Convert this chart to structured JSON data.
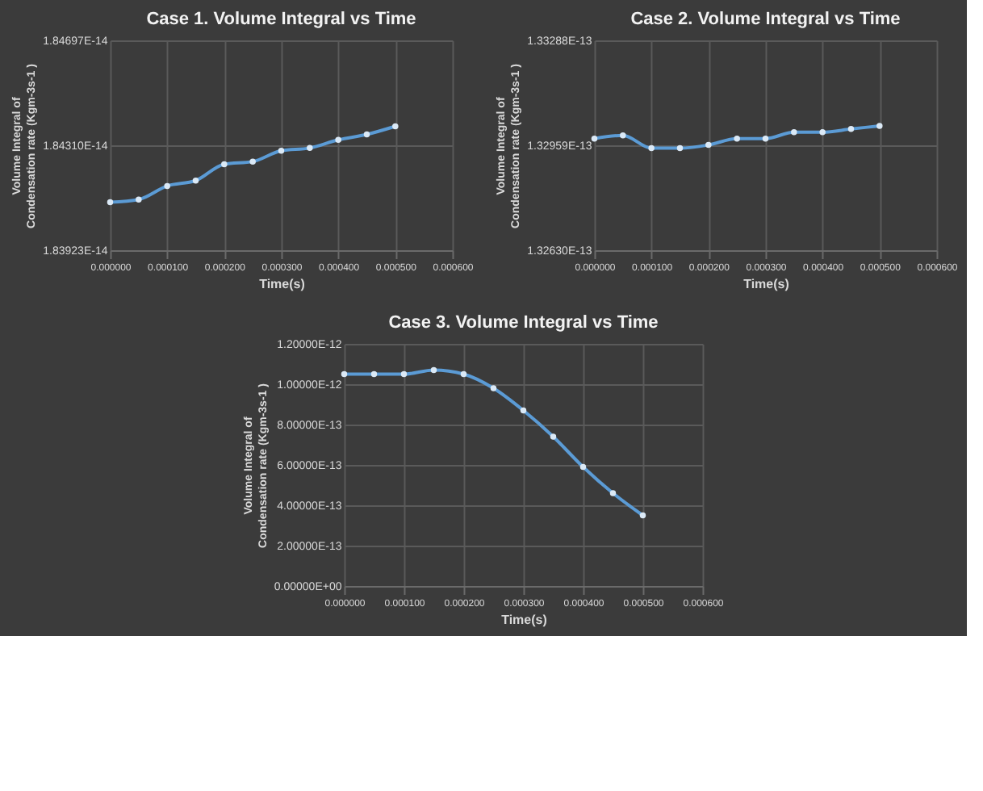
{
  "chart_data": [
    {
      "type": "line",
      "title": "Case 1. Volume Integral vs Time",
      "xlabel": "Time(s)",
      "ylabel": "Volume Integral of Condensation rate (Kgm-3s-1 )",
      "marker": "circle",
      "line_style": "solid",
      "grid": true,
      "x": [
        0,
        5e-05,
        0.0001,
        0.00015,
        0.0002,
        0.00025,
        0.0003,
        0.00035,
        0.0004,
        0.00045,
        0.0005
      ],
      "series": [
        {
          "color": "#5b9bd5",
          "values": [
            1.841e-14,
            1.8411e-14,
            1.8416e-14,
            1.8418e-14,
            1.8424e-14,
            1.8425e-14,
            1.8429e-14,
            1.843e-14,
            1.8433e-14,
            1.8435e-14,
            1.8438e-14
          ]
        }
      ],
      "xlim": [
        0,
        0.0006
      ],
      "xticks": [
        {
          "value": 0,
          "label": "0.000000"
        },
        {
          "value": 0.0001,
          "label": "0.000100"
        },
        {
          "value": 0.0002,
          "label": "0.000200"
        },
        {
          "value": 0.0003,
          "label": "0.000300"
        },
        {
          "value": 0.0004,
          "label": "0.000400"
        },
        {
          "value": 0.0005,
          "label": "0.000500"
        },
        {
          "value": 0.0006,
          "label": "0.000600"
        }
      ],
      "ylim": [
        1.83923e-14,
        1.84697e-14
      ],
      "yticks": [
        {
          "value": 1.83923e-14,
          "label": "1.83923E-14"
        },
        {
          "value": 1.8431e-14,
          "label": "1.84310E-14"
        },
        {
          "value": 1.84697e-14,
          "label": "1.84697E-14"
        }
      ]
    },
    {
      "type": "line",
      "title": "Case 2. Volume Integral vs Time",
      "xlabel": "Time(s)",
      "ylabel": "Volume Integral of Condensation rate (Kgm-3s-1 )",
      "marker": "circle",
      "line_style": "solid",
      "grid": true,
      "x": [
        0,
        5e-05,
        0.0001,
        0.00015,
        0.0002,
        0.00025,
        0.0003,
        0.00035,
        0.0004,
        0.00045,
        0.0005
      ],
      "series": [
        {
          "color": "#5b9bd5",
          "values": [
            1.3298e-13,
            1.3299e-13,
            1.3295e-13,
            1.3295e-13,
            1.3296e-13,
            1.3298e-13,
            1.3298e-13,
            1.33e-13,
            1.33e-13,
            1.3301e-13,
            1.3302e-13
          ]
        }
      ],
      "xlim": [
        0,
        0.0006
      ],
      "xticks": [
        {
          "value": 0,
          "label": "0.000000"
        },
        {
          "value": 0.0001,
          "label": "0.000100"
        },
        {
          "value": 0.0002,
          "label": "0.000200"
        },
        {
          "value": 0.0003,
          "label": "0.000300"
        },
        {
          "value": 0.0004,
          "label": "0.000400"
        },
        {
          "value": 0.0005,
          "label": "0.000500"
        },
        {
          "value": 0.0006,
          "label": "0.000600"
        }
      ],
      "ylim": [
        1.3263e-13,
        1.33288e-13
      ],
      "yticks": [
        {
          "value": 1.3263e-13,
          "label": "1.32630E-13"
        },
        {
          "value": 1.32959e-13,
          "label": "1.32959E-13"
        },
        {
          "value": 1.33288e-13,
          "label": "1.33288E-13"
        }
      ]
    },
    {
      "type": "line",
      "title": "Case 3. Volume Integral vs Time",
      "xlabel": "Time(s)",
      "ylabel": "Volume Integral of Condensation rate (Kgm-3s-1 )",
      "marker": "circle",
      "line_style": "solid",
      "grid": true,
      "x": [
        0,
        5e-05,
        0.0001,
        0.00015,
        0.0002,
        0.00025,
        0.0003,
        0.00035,
        0.0004,
        0.00045,
        0.0005
      ],
      "series": [
        {
          "color": "#5b9bd5",
          "values": [
            1.05e-12,
            1.05e-12,
            1.05e-12,
            1.07e-12,
            1.05e-12,
            9.8e-13,
            8.7e-13,
            7.4e-13,
            5.9e-13,
            4.6e-13,
            3.5e-13
          ]
        }
      ],
      "xlim": [
        0,
        0.0006
      ],
      "xticks": [
        {
          "value": 0,
          "label": "0.000000"
        },
        {
          "value": 0.0001,
          "label": "0.000100"
        },
        {
          "value": 0.0002,
          "label": "0.000200"
        },
        {
          "value": 0.0003,
          "label": "0.000300"
        },
        {
          "value": 0.0004,
          "label": "0.000400"
        },
        {
          "value": 0.0005,
          "label": "0.000500"
        },
        {
          "value": 0.0006,
          "label": "0.000600"
        }
      ],
      "ylim": [
        0,
        1.2e-12
      ],
      "yticks": [
        {
          "value": 0,
          "label": "0.00000E+00"
        },
        {
          "value": 2e-13,
          "label": "2.00000E-13"
        },
        {
          "value": 4e-13,
          "label": "4.00000E-13"
        },
        {
          "value": 6e-13,
          "label": "6.00000E-13"
        },
        {
          "value": 8e-13,
          "label": "8.00000E-13"
        },
        {
          "value": 1e-12,
          "label": "1.00000E-12"
        },
        {
          "value": 1.2e-12,
          "label": "1.20000E-12"
        }
      ]
    }
  ]
}
